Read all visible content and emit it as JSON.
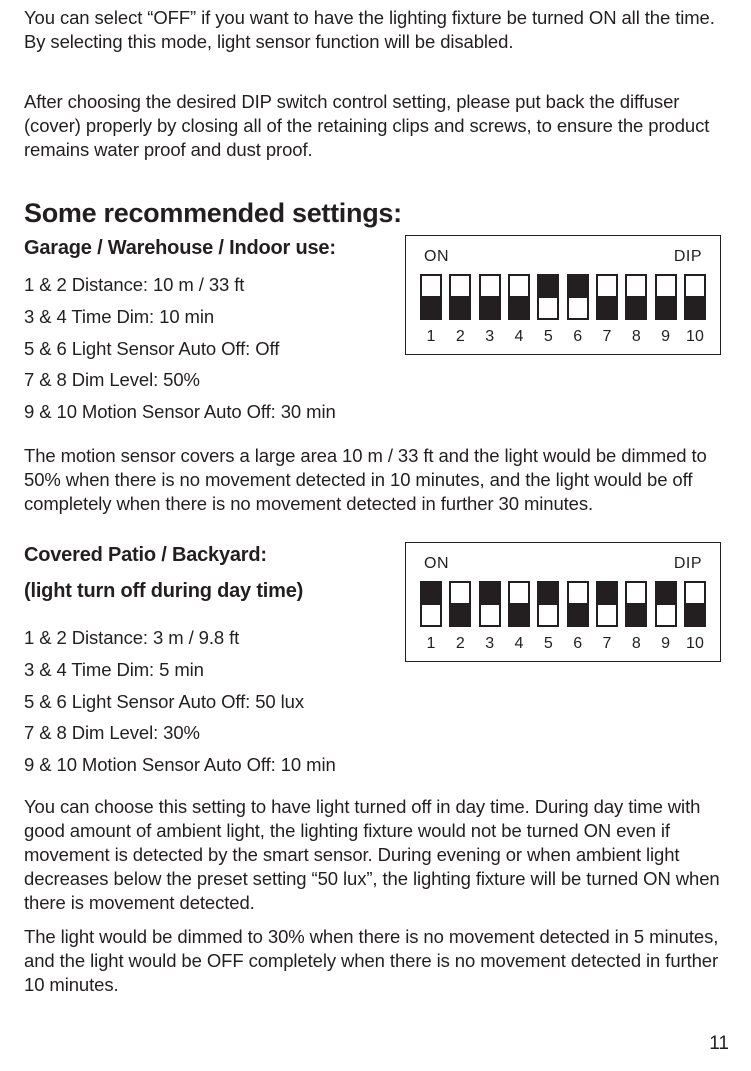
{
  "intro_p1": "You can select “OFF” if you want to have the lighting fixture be turned ON all the time. By selecting this mode, light sensor function will be disabled.",
  "intro_p2": "After choosing the desired DIP switch control setting, please put back the diffuser (cover) properly by closing all of the retaining clips and screws, to ensure the product remains water proof and dust proof.",
  "heading_recommended": "Some recommended settings:",
  "section1": {
    "title": "Garage / Warehouse / Indoor use:",
    "items": [
      "1 & 2 Distance: 10 m / 33 ft",
      "3 & 4 Time Dim: 10 min",
      "5 & 6 Light Sensor Auto Off: Off",
      "7 & 8 Dim Level: 50%",
      "9 & 10 Motion Sensor Auto Off: 30 min"
    ],
    "dip": {
      "on_label": "ON",
      "dip_label": "DIP",
      "positions": [
        "on",
        "on",
        "on",
        "on",
        "off",
        "off",
        "on",
        "on",
        "on",
        "on"
      ],
      "numbers": [
        "1",
        "2",
        "3",
        "4",
        "5",
        "6",
        "7",
        "8",
        "9",
        "10"
      ]
    },
    "explain": "The motion sensor covers a large area 10 m / 33 ft and the light would be dimmed to 50% when there is no movement detected in 10 minutes, and the light would be off completely when there is no movement detected in further 30 minutes."
  },
  "section2": {
    "title_line1": "Covered Patio / Backyard:",
    "title_line2": "(light turn off during day time)",
    "items": [
      "1 & 2 Distance: 3 m / 9.8 ft",
      "3 & 4 Time Dim: 5 min",
      "5 & 6 Light Sensor Auto Off: 50 lux",
      "7 & 8 Dim Level: 30%",
      "9 & 10 Motion Sensor Auto Off: 10 min"
    ],
    "dip": {
      "on_label": "ON",
      "dip_label": "DIP",
      "positions": [
        "off",
        "on",
        "off",
        "on",
        "off",
        "on",
        "off",
        "on",
        "off",
        "on"
      ],
      "numbers": [
        "1",
        "2",
        "3",
        "4",
        "5",
        "6",
        "7",
        "8",
        "9",
        "10"
      ]
    },
    "explain1": "You can choose this setting to have light turned off in day time. During day time with good amount of ambient light, the lighting fixture would not be turned ON even if movement is detected by the smart sensor. During evening or when ambient light decreases below the preset setting “50 lux”, the lighting fixture will be turned ON when there is movement detected.",
    "explain2": "The light would be dimmed to 30% when there is no movement detected in 5 minutes, and the light would be OFF completely when there is no movement detected in further 10 minutes."
  },
  "page_number": "11",
  "style": {
    "dip_box_border_color": "#231f20",
    "switch_bg": "#231f20",
    "knob_bg": "#ffffff",
    "page_bg": "#ffffff"
  }
}
